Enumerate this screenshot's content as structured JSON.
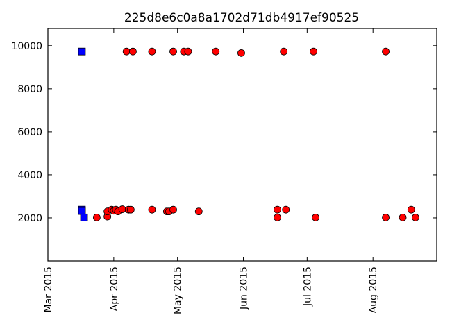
{
  "chart_data": {
    "type": "scatter",
    "title": "225d8e6c0a8a1702d71db4917ef90525",
    "xlabel": "",
    "ylabel": "",
    "x_axis_type": "date",
    "xlim": [
      "2015-03-01",
      "2015-08-31"
    ],
    "ylim": [
      0,
      10800
    ],
    "y_ticks": [
      2000,
      4000,
      6000,
      8000,
      10000
    ],
    "x_ticks": [
      "2015-03-01",
      "2015-04-01",
      "2015-05-01",
      "2015-06-01",
      "2015-07-01",
      "2015-08-01"
    ],
    "x_tick_labels": [
      "Mar 2015",
      "Apr 2015",
      "May 2015",
      "Jun 2015",
      "Jul 2015",
      "Aug 2015"
    ],
    "grid": false,
    "legend": "none",
    "series": [
      {
        "marker": "square",
        "color": "#0000ff",
        "points": [
          {
            "x": "2015-03-17",
            "y": 9730
          },
          {
            "x": "2015-03-17",
            "y": 2380
          },
          {
            "x": "2015-03-17",
            "y": 2320
          },
          {
            "x": "2015-03-18",
            "y": 2020
          }
        ]
      },
      {
        "marker": "circle",
        "color": "#ff0000",
        "points": [
          {
            "x": "2015-03-24",
            "y": 2020
          },
          {
            "x": "2015-03-29",
            "y": 2060
          },
          {
            "x": "2015-03-29",
            "y": 2300
          },
          {
            "x": "2015-03-31",
            "y": 2380
          },
          {
            "x": "2015-04-01",
            "y": 2330
          },
          {
            "x": "2015-04-02",
            "y": 2380
          },
          {
            "x": "2015-04-03",
            "y": 2300
          },
          {
            "x": "2015-04-05",
            "y": 2400
          },
          {
            "x": "2015-04-07",
            "y": 9730
          },
          {
            "x": "2015-04-08",
            "y": 2380
          },
          {
            "x": "2015-04-09",
            "y": 2380
          },
          {
            "x": "2015-04-10",
            "y": 9730
          },
          {
            "x": "2015-04-19",
            "y": 9730
          },
          {
            "x": "2015-04-19",
            "y": 2380
          },
          {
            "x": "2015-04-26",
            "y": 2300
          },
          {
            "x": "2015-04-27",
            "y": 2300
          },
          {
            "x": "2015-04-29",
            "y": 9730
          },
          {
            "x": "2015-04-29",
            "y": 2380
          },
          {
            "x": "2015-05-04",
            "y": 9730
          },
          {
            "x": "2015-05-06",
            "y": 9730
          },
          {
            "x": "2015-05-11",
            "y": 2300
          },
          {
            "x": "2015-05-19",
            "y": 9730
          },
          {
            "x": "2015-05-31",
            "y": 9660
          },
          {
            "x": "2015-06-17",
            "y": 2380
          },
          {
            "x": "2015-06-17",
            "y": 2020
          },
          {
            "x": "2015-06-20",
            "y": 9730
          },
          {
            "x": "2015-06-21",
            "y": 2380
          },
          {
            "x": "2015-07-04",
            "y": 9730
          },
          {
            "x": "2015-07-05",
            "y": 2020
          },
          {
            "x": "2015-08-07",
            "y": 9730
          },
          {
            "x": "2015-08-07",
            "y": 2020
          },
          {
            "x": "2015-08-15",
            "y": 2020
          },
          {
            "x": "2015-08-19",
            "y": 2380
          },
          {
            "x": "2015-08-21",
            "y": 2020
          }
        ]
      }
    ]
  }
}
